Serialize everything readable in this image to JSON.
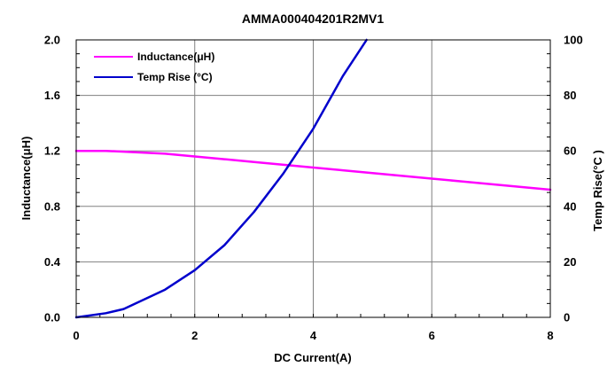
{
  "chart_data": {
    "type": "line",
    "title": "AMMA000404201R2MV1",
    "xlabel": "DC Current(A)",
    "ylabel_left": "Inductance(μH)",
    "ylabel_right": "Temp Rise(°C )",
    "xlim": [
      0,
      8
    ],
    "ylim_left": [
      0,
      2.0
    ],
    "ylim_right": [
      0,
      100
    ],
    "xticks": [
      "0",
      "2",
      "4",
      "6",
      "8"
    ],
    "yticks_left": [
      "0.0",
      "0.4",
      "0.8",
      "1.2",
      "1.6",
      "2.0"
    ],
    "yticks_right": [
      "0",
      "20",
      "40",
      "60",
      "80",
      "100"
    ],
    "grid": true,
    "legend_position": "top-left",
    "series": [
      {
        "name": "Inductance(μH)",
        "axis": "left",
        "color": "#ff00ff",
        "x": [
          0,
          0.5,
          1.0,
          1.5,
          2.0,
          2.5,
          3.0,
          3.5,
          4.0,
          4.5,
          5.0,
          5.5,
          6.0,
          6.5,
          7.0,
          7.5,
          8.0
        ],
        "y": [
          1.2,
          1.2,
          1.19,
          1.18,
          1.16,
          1.14,
          1.12,
          1.1,
          1.08,
          1.06,
          1.04,
          1.02,
          1.0,
          0.98,
          0.96,
          0.94,
          0.92
        ]
      },
      {
        "name": "Temp Rise (°C)",
        "axis": "right",
        "color": "#0000cc",
        "x": [
          0,
          0.5,
          0.8,
          1.0,
          1.5,
          2.0,
          2.5,
          3.0,
          3.5,
          4.0,
          4.5,
          4.9
        ],
        "y": [
          0,
          1.5,
          3,
          5,
          10,
          17,
          26,
          38,
          52,
          68,
          87,
          100
        ]
      }
    ]
  }
}
